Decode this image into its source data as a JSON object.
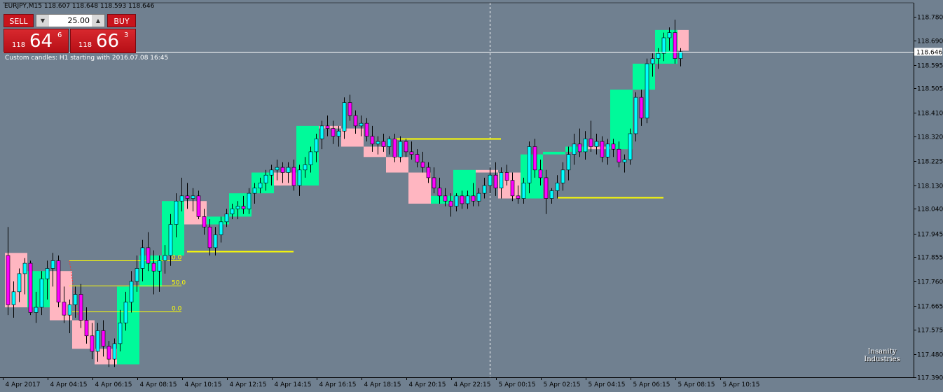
{
  "window": {
    "symbol_title": "EURJPY,M15  118.607 118.648 118.593 118.646",
    "indicator_label": "Custom candles: H1 starting with 2016.07.08 16:45",
    "watermark_line1": "Insanity",
    "watermark_line2": "Industries"
  },
  "trade_panel": {
    "sell_label": "SELL",
    "buy_label": "BUY",
    "lot_value": "25.00",
    "lot_down_icon": "triangle-down-icon",
    "lot_up_icon": "triangle-up-icon",
    "sell_price": {
      "big": "118",
      "main": "64",
      "sup": "6"
    },
    "buy_price": {
      "big": "118",
      "main": "66",
      "sup": "3"
    }
  },
  "colors": {
    "background": "#708090",
    "bull_body": "#00FFFF",
    "bear_body": "#FF00FF",
    "h1_bull": "#00FA9A",
    "h1_bear": "#FFB6C1",
    "level_line": "#FFFF00",
    "price_line": "#FFFFFF",
    "sell_buy_red": "#C8141C"
  },
  "chart_data": {
    "type": "candlestick",
    "symbol": "EURJPY",
    "timeframe": "M15",
    "current_price": 118.646,
    "ylim": [
      117.39,
      118.835
    ],
    "y_ticks": [
      "118.780",
      "118.690",
      "118.595",
      "118.505",
      "118.410",
      "118.320",
      "118.225",
      "118.130",
      "118.040",
      "117.945",
      "117.855",
      "117.760",
      "117.665",
      "117.575",
      "117.480",
      "117.390"
    ],
    "x_ticks": [
      "4 Apr 2017",
      "4 Apr 04:15",
      "4 Apr 06:15",
      "4 Apr 08:15",
      "4 Apr 10:15",
      "4 Apr 12:15",
      "4 Apr 14:15",
      "4 Apr 16:15",
      "4 Apr 18:15",
      "4 Apr 20:15",
      "4 Apr 22:15",
      "5 Apr 00:15",
      "5 Apr 02:15",
      "5 Apr 04:15",
      "5 Apr 06:15",
      "5 Apr 08:15",
      "5 Apr 10:15"
    ],
    "first_bar_time": "4 Apr 2017 02:15",
    "bar_minutes": 15,
    "candles": [
      [
        117.86,
        117.97,
        117.63,
        117.67
      ],
      [
        117.67,
        117.76,
        117.62,
        117.72
      ],
      [
        117.72,
        117.81,
        117.68,
        117.79
      ],
      [
        117.79,
        117.85,
        117.71,
        117.83
      ],
      [
        117.83,
        117.84,
        117.63,
        117.64
      ],
      [
        117.64,
        117.72,
        117.6,
        117.66
      ],
      [
        117.66,
        117.8,
        117.63,
        117.77
      ],
      [
        117.77,
        117.84,
        117.69,
        117.81
      ],
      [
        117.81,
        117.87,
        117.74,
        117.84
      ],
      [
        117.84,
        117.86,
        117.66,
        117.68
      ],
      [
        117.68,
        117.74,
        117.6,
        117.63
      ],
      [
        117.63,
        117.69,
        117.56,
        117.67
      ],
      [
        117.67,
        117.74,
        117.62,
        117.71
      ],
      [
        117.71,
        117.75,
        117.58,
        117.61
      ],
      [
        117.61,
        117.66,
        117.52,
        117.55
      ],
      [
        117.55,
        117.6,
        117.46,
        117.49
      ],
      [
        117.49,
        117.6,
        117.45,
        117.57
      ],
      [
        117.57,
        117.61,
        117.47,
        117.51
      ],
      [
        117.51,
        117.53,
        117.43,
        117.46
      ],
      [
        117.46,
        117.54,
        117.43,
        117.52
      ],
      [
        117.52,
        117.65,
        117.49,
        117.6
      ],
      [
        117.6,
        117.72,
        117.57,
        117.68
      ],
      [
        117.68,
        117.8,
        117.64,
        117.76
      ],
      [
        117.76,
        117.86,
        117.72,
        117.81
      ],
      [
        117.81,
        117.92,
        117.76,
        117.89
      ],
      [
        117.89,
        117.95,
        117.8,
        117.83
      ],
      [
        117.83,
        117.88,
        117.71,
        117.8
      ],
      [
        117.8,
        117.86,
        117.72,
        117.84
      ],
      [
        117.84,
        117.9,
        117.79,
        117.86
      ],
      [
        117.86,
        118.02,
        117.82,
        117.98
      ],
      [
        117.98,
        118.1,
        117.93,
        118.07
      ],
      [
        118.07,
        118.16,
        118.03,
        118.09
      ],
      [
        118.09,
        118.14,
        118.04,
        118.08
      ],
      [
        118.08,
        118.12,
        118.03,
        118.09
      ],
      [
        118.09,
        118.11,
        118.0,
        118.01
      ],
      [
        118.01,
        118.04,
        117.94,
        117.97
      ],
      [
        117.97,
        118.0,
        117.86,
        117.89
      ],
      [
        117.89,
        117.97,
        117.86,
        117.94
      ],
      [
        117.94,
        118.01,
        117.91,
        117.99
      ],
      [
        117.99,
        118.04,
        117.97,
        118.02
      ],
      [
        118.02,
        118.06,
        118.0,
        118.04
      ],
      [
        118.04,
        118.07,
        118.0,
        118.05
      ],
      [
        118.05,
        118.09,
        118.02,
        118.04
      ],
      [
        118.04,
        118.12,
        118.02,
        118.1
      ],
      [
        118.1,
        118.14,
        118.06,
        118.12
      ],
      [
        118.12,
        118.16,
        118.1,
        118.14
      ],
      [
        118.14,
        118.19,
        118.11,
        118.17
      ],
      [
        118.17,
        118.21,
        118.13,
        118.19
      ],
      [
        118.19,
        118.23,
        118.15,
        118.2
      ],
      [
        118.2,
        118.22,
        118.14,
        118.18
      ],
      [
        118.18,
        118.22,
        118.14,
        118.2
      ],
      [
        118.2,
        118.23,
        118.11,
        118.13
      ],
      [
        118.13,
        118.21,
        118.09,
        118.19
      ],
      [
        118.19,
        118.24,
        118.16,
        118.21
      ],
      [
        118.21,
        118.28,
        118.18,
        118.26
      ],
      [
        118.26,
        118.33,
        118.22,
        118.31
      ],
      [
        118.31,
        118.38,
        118.27,
        118.36
      ],
      [
        118.36,
        118.4,
        118.32,
        118.35
      ],
      [
        118.35,
        118.38,
        118.29,
        118.32
      ],
      [
        118.32,
        118.36,
        118.28,
        118.34
      ],
      [
        118.34,
        118.47,
        118.31,
        118.45
      ],
      [
        118.45,
        118.48,
        118.38,
        118.4
      ],
      [
        118.4,
        118.42,
        118.33,
        118.36
      ],
      [
        118.36,
        118.4,
        118.32,
        118.37
      ],
      [
        118.37,
        118.39,
        118.3,
        118.32
      ],
      [
        118.32,
        118.36,
        118.26,
        118.29
      ],
      [
        118.29,
        118.32,
        118.25,
        118.3
      ],
      [
        118.3,
        118.33,
        118.26,
        118.28
      ],
      [
        118.28,
        118.32,
        118.25,
        118.31
      ],
      [
        118.31,
        118.33,
        118.22,
        118.24
      ],
      [
        118.24,
        118.32,
        118.22,
        118.3
      ],
      [
        118.3,
        118.31,
        118.24,
        118.26
      ],
      [
        118.26,
        118.3,
        118.23,
        118.25
      ],
      [
        118.25,
        118.27,
        118.2,
        118.22
      ],
      [
        118.22,
        118.26,
        118.18,
        118.2
      ],
      [
        118.2,
        118.22,
        118.14,
        118.16
      ],
      [
        118.16,
        118.2,
        118.1,
        118.12
      ],
      [
        118.12,
        118.16,
        118.06,
        118.09
      ],
      [
        118.09,
        118.12,
        118.05,
        118.07
      ],
      [
        118.07,
        118.1,
        118.01,
        118.05
      ],
      [
        118.05,
        118.1,
        118.03,
        118.09
      ],
      [
        118.09,
        118.11,
        118.04,
        118.06
      ],
      [
        118.06,
        118.11,
        118.04,
        118.09
      ],
      [
        118.09,
        118.14,
        118.05,
        118.07
      ],
      [
        118.07,
        118.12,
        118.05,
        118.1
      ],
      [
        118.1,
        118.16,
        118.08,
        118.13
      ],
      [
        118.13,
        118.2,
        118.1,
        118.17
      ],
      [
        118.17,
        118.22,
        118.09,
        118.12
      ],
      [
        118.12,
        118.2,
        118.08,
        118.18
      ],
      [
        118.18,
        118.21,
        118.13,
        118.15
      ],
      [
        118.15,
        118.18,
        118.07,
        118.09
      ],
      [
        118.09,
        118.13,
        118.06,
        118.08
      ],
      [
        118.08,
        118.16,
        118.06,
        118.14
      ],
      [
        118.14,
        118.3,
        118.1,
        118.28
      ],
      [
        118.28,
        118.31,
        118.16,
        118.19
      ],
      [
        118.19,
        118.23,
        118.13,
        118.16
      ],
      [
        118.16,
        118.19,
        118.02,
        118.08
      ],
      [
        118.08,
        118.12,
        118.06,
        118.11
      ],
      [
        118.11,
        118.17,
        118.08,
        118.14
      ],
      [
        118.14,
        118.22,
        118.11,
        118.19
      ],
      [
        118.19,
        118.28,
        118.15,
        118.25
      ],
      [
        118.25,
        118.33,
        118.21,
        118.29
      ],
      [
        118.29,
        118.35,
        118.24,
        118.26
      ],
      [
        118.26,
        118.34,
        118.23,
        118.31
      ],
      [
        118.31,
        118.38,
        118.26,
        118.28
      ],
      [
        118.28,
        118.33,
        118.25,
        118.3
      ],
      [
        118.3,
        118.32,
        118.22,
        118.24
      ],
      [
        118.24,
        118.31,
        118.21,
        118.29
      ],
      [
        118.29,
        118.31,
        118.24,
        118.27
      ],
      [
        118.27,
        118.3,
        118.2,
        118.22
      ],
      [
        118.22,
        118.25,
        118.18,
        118.23
      ],
      [
        118.23,
        118.35,
        118.21,
        118.33
      ],
      [
        118.33,
        118.49,
        118.3,
        118.47
      ],
      [
        118.47,
        118.5,
        118.36,
        118.39
      ],
      [
        118.39,
        118.62,
        118.37,
        118.6
      ],
      [
        118.6,
        118.64,
        118.55,
        118.62
      ],
      [
        118.62,
        118.66,
        118.58,
        118.64
      ],
      [
        118.64,
        118.72,
        118.61,
        118.7
      ],
      [
        118.7,
        118.74,
        118.65,
        118.72
      ],
      [
        118.72,
        118.77,
        118.6,
        118.62
      ],
      [
        118.62,
        118.66,
        118.59,
        118.646
      ]
    ],
    "h1_blocks": [
      [
        0,
        3,
        117.87,
        117.66
      ],
      [
        4,
        7,
        117.66,
        117.8
      ],
      [
        8,
        11,
        117.8,
        117.61
      ],
      [
        12,
        15,
        117.61,
        117.5
      ],
      [
        16,
        19,
        117.5,
        117.44
      ],
      [
        20,
        23,
        117.44,
        117.74
      ],
      [
        24,
        27,
        117.74,
        117.86
      ],
      [
        28,
        31,
        117.86,
        118.07
      ],
      [
        32,
        35,
        118.07,
        117.98
      ],
      [
        36,
        39,
        117.98,
        118.01
      ],
      [
        40,
        43,
        118.01,
        118.1
      ],
      [
        44,
        47,
        118.1,
        118.18
      ],
      [
        48,
        51,
        118.18,
        118.13
      ],
      [
        52,
        55,
        118.13,
        118.36
      ],
      [
        56,
        59,
        118.36,
        118.35
      ],
      [
        60,
        63,
        118.35,
        118.28
      ],
      [
        64,
        67,
        118.28,
        118.24
      ],
      [
        68,
        71,
        118.24,
        118.18
      ],
      [
        72,
        75,
        118.18,
        118.06
      ],
      [
        76,
        79,
        118.06,
        118.09
      ],
      [
        80,
        83,
        118.09,
        118.19
      ],
      [
        84,
        87,
        118.19,
        118.18
      ],
      [
        88,
        91,
        118.18,
        118.08
      ],
      [
        92,
        95,
        118.08,
        118.25
      ],
      [
        96,
        99,
        118.25,
        118.26
      ],
      [
        100,
        103,
        118.26,
        118.28
      ],
      [
        104,
        107,
        118.28,
        118.27
      ],
      [
        108,
        111,
        118.27,
        118.5
      ],
      [
        112,
        115,
        118.5,
        118.6
      ],
      [
        116,
        119,
        118.6,
        118.73
      ],
      [
        120,
        121,
        118.73,
        118.65
      ]
    ],
    "levels": [
      {
        "price": 117.875,
        "from_bar": 32,
        "to_bar": 51
      },
      {
        "price": 118.31,
        "from_bar": 69,
        "to_bar": 88
      },
      {
        "price": 118.085,
        "from_bar": 98,
        "to_bar": 117
      }
    ],
    "fibo": {
      "high": 117.84,
      "low": 117.645,
      "from_bar": 11,
      "to_bar": 31,
      "levels": [
        {
          "label": "0.0",
          "price": 117.84
        },
        {
          "label": "50.0",
          "price": 117.743
        },
        {
          "label": "0.0",
          "price": 117.645
        }
      ]
    },
    "vline_bar": 86,
    "grid": false,
    "legend": "none"
  }
}
